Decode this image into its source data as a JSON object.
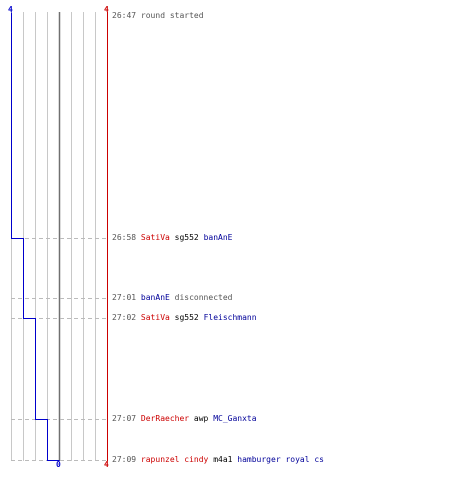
{
  "score": {
    "left_top": "4",
    "right_top": "4",
    "left_bottom": "0",
    "right_bottom": "4"
  },
  "colors": {
    "team_a": "#cc0000",
    "team_b": "#000099",
    "grid": "#c8c8c8",
    "center": "#707070",
    "dash": "#bbbbbb"
  },
  "events": [
    {
      "time": "26:47",
      "parts": [
        {
          "text": "round started",
          "role": "grey"
        }
      ]
    },
    {
      "time": "26:58",
      "parts": [
        {
          "text": "SatiVa",
          "role": "red"
        },
        {
          "text": "sg552",
          "role": "blk"
        },
        {
          "text": "banAnE",
          "role": "blue"
        }
      ]
    },
    {
      "time": "27:01",
      "parts": [
        {
          "text": "banAnE",
          "role": "blue"
        },
        {
          "text": "disconnected",
          "role": "grey"
        }
      ]
    },
    {
      "time": "27:02",
      "parts": [
        {
          "text": "SatiVa",
          "role": "red"
        },
        {
          "text": "sg552",
          "role": "blk"
        },
        {
          "text": "Fleischmann",
          "role": "blue"
        }
      ]
    },
    {
      "time": "27:07",
      "parts": [
        {
          "text": "DerRaecher",
          "role": "red"
        },
        {
          "text": "awp",
          "role": "blk"
        },
        {
          "text": "MC_Ganxta",
          "role": "blue"
        }
      ]
    },
    {
      "time": "27:09",
      "parts": [
        {
          "text": "rapunzel cindy",
          "role": "red"
        },
        {
          "text": "m4a1",
          "role": "blk"
        },
        {
          "text": "hamburger royal cs",
          "role": "blue"
        }
      ]
    }
  ]
}
